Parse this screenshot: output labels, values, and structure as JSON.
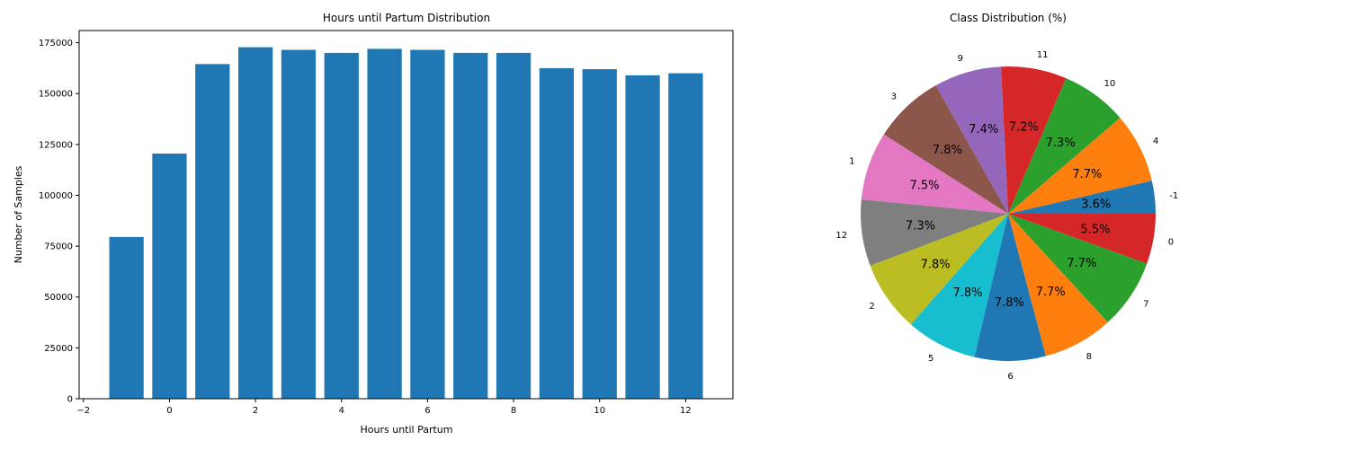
{
  "chart_data": [
    {
      "type": "bar",
      "title": "Hours until Partum Distribution",
      "xlabel": "Hours until Partum",
      "ylabel": "Number of Samples",
      "x": [
        -1,
        0,
        1,
        2,
        3,
        4,
        5,
        6,
        7,
        8,
        9,
        10,
        11,
        12
      ],
      "values": [
        79500,
        120500,
        164500,
        172800,
        171500,
        170000,
        172000,
        171500,
        170000,
        170000,
        162500,
        162000,
        159000,
        160000
      ],
      "xlim": [
        -2.1,
        13.1
      ],
      "ylim": [
        0,
        181000
      ],
      "xticks": [
        -2,
        0,
        2,
        4,
        6,
        8,
        10,
        12
      ],
      "yticks": [
        0,
        25000,
        50000,
        75000,
        100000,
        125000,
        150000,
        175000
      ],
      "color": "#1f77b4",
      "grid": false
    },
    {
      "type": "pie",
      "title": "Class Distribution (%)",
      "labels": [
        "-1",
        "4",
        "10",
        "11",
        "9",
        "3",
        "1",
        "12",
        "2",
        "5",
        "6",
        "8",
        "7",
        "0"
      ],
      "values": [
        3.6,
        7.7,
        7.3,
        7.2,
        7.4,
        7.8,
        7.5,
        7.3,
        7.8,
        7.8,
        7.8,
        7.7,
        7.7,
        5.5
      ],
      "pct_labels": [
        "3.6%",
        "7.7%",
        "7.3%",
        "7.2%",
        "7.4%",
        "7.8%",
        "7.5%",
        "7.3%",
        "7.8%",
        "7.8%",
        "7.8%",
        "7.7%",
        "7.7%",
        "5.5%"
      ],
      "colors": [
        "#1f77b4",
        "#ff7f0e",
        "#2ca02c",
        "#d62728",
        "#9467bd",
        "#8c564b",
        "#e377c2",
        "#7f7f7f",
        "#bcbd22",
        "#17becf",
        "#1f77b4",
        "#ff7f0e",
        "#2ca02c",
        "#d62728"
      ]
    }
  ]
}
